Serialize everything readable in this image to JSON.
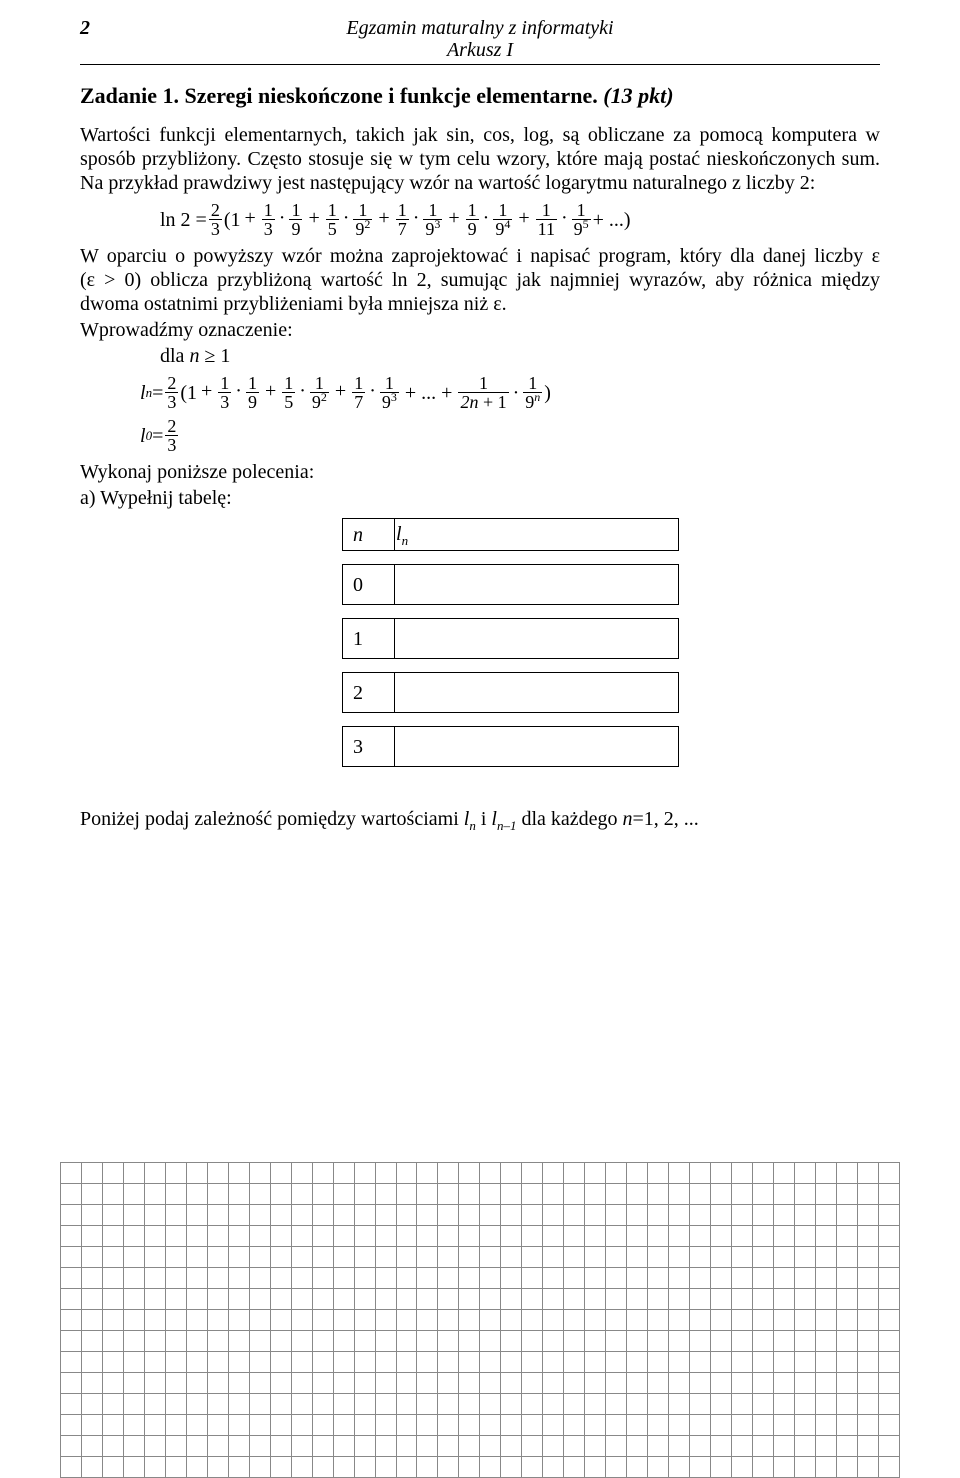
{
  "header": {
    "page_num": "2",
    "title": "Egzamin maturalny z informatyki",
    "subtitle": "Arkusz I"
  },
  "task": {
    "title_main": "Zadanie 1. Szeregi nieskończone i funkcje elementarne.",
    "title_pts": "(13 pkt)",
    "para1": "Wartości funkcji elementarnych, takich jak sin, cos, log, są obliczane za pomocą komputera w sposób przybliżony. Często stosuje się w tym celu wzory, które mają postać nieskończonych sum. Na przykład prawdziwy jest następujący wzór na wartość logarytmu naturalnego z liczby 2:",
    "para2_a": "W oparciu o powyższy wzór można zaprojektować i napisać program, który dla danej liczby ε (ε > 0) oblicza przybliżoną wartość ln 2, sumując jak najmniej wyrazów, aby różnica między dwoma ostatnimi przybliżeniami była mniejsza niż ε.",
    "intro_notation": "Wprowadźmy oznaczenie:",
    "for_n": "dla",
    "cmds": "Wykonaj poniższe polecenia:",
    "a_label": "a)  Wypełnij tabelę:",
    "footer_line_a": "Poniżej podaj zależność pomiędzy wartościami ",
    "footer_line_b": " dla każdego "
  },
  "formula1": {
    "lhs": "ln 2 =",
    "coef_num": "2",
    "coef_den": "3",
    "terms": [
      {
        "dn": "3",
        "pd": "9",
        "pe": ""
      },
      {
        "dn": "5",
        "pd": "9",
        "pe": "2"
      },
      {
        "dn": "7",
        "pd": "9",
        "pe": "3"
      },
      {
        "dn": "9",
        "pd": "9",
        "pe": "4"
      },
      {
        "dn": "11",
        "pd": "9",
        "pe": "5"
      }
    ],
    "tail": "+ ...)"
  },
  "formula_ln": {
    "coef_num": "2",
    "coef_den": "3",
    "terms": [
      {
        "dn": "3",
        "pd": "9",
        "pe": ""
      },
      {
        "dn": "5",
        "pd": "9",
        "pe": "2"
      },
      {
        "dn": "7",
        "pd": "9",
        "pe": "3"
      }
    ],
    "last_den_l": "2n + 1",
    "last_den_r_base": "9",
    "last_den_r_exp": "n"
  },
  "formula_l0": {
    "num": "2",
    "den": "3"
  },
  "table": {
    "h1": "n",
    "h2_a": "l",
    "h2_b": "n",
    "rows": [
      "0",
      "1",
      "2",
      "3"
    ]
  },
  "grid": {
    "rows": 15,
    "cols": 40
  },
  "colors": {
    "grid_border": "#888888",
    "text": "#000000",
    "bg": "#ffffff"
  }
}
